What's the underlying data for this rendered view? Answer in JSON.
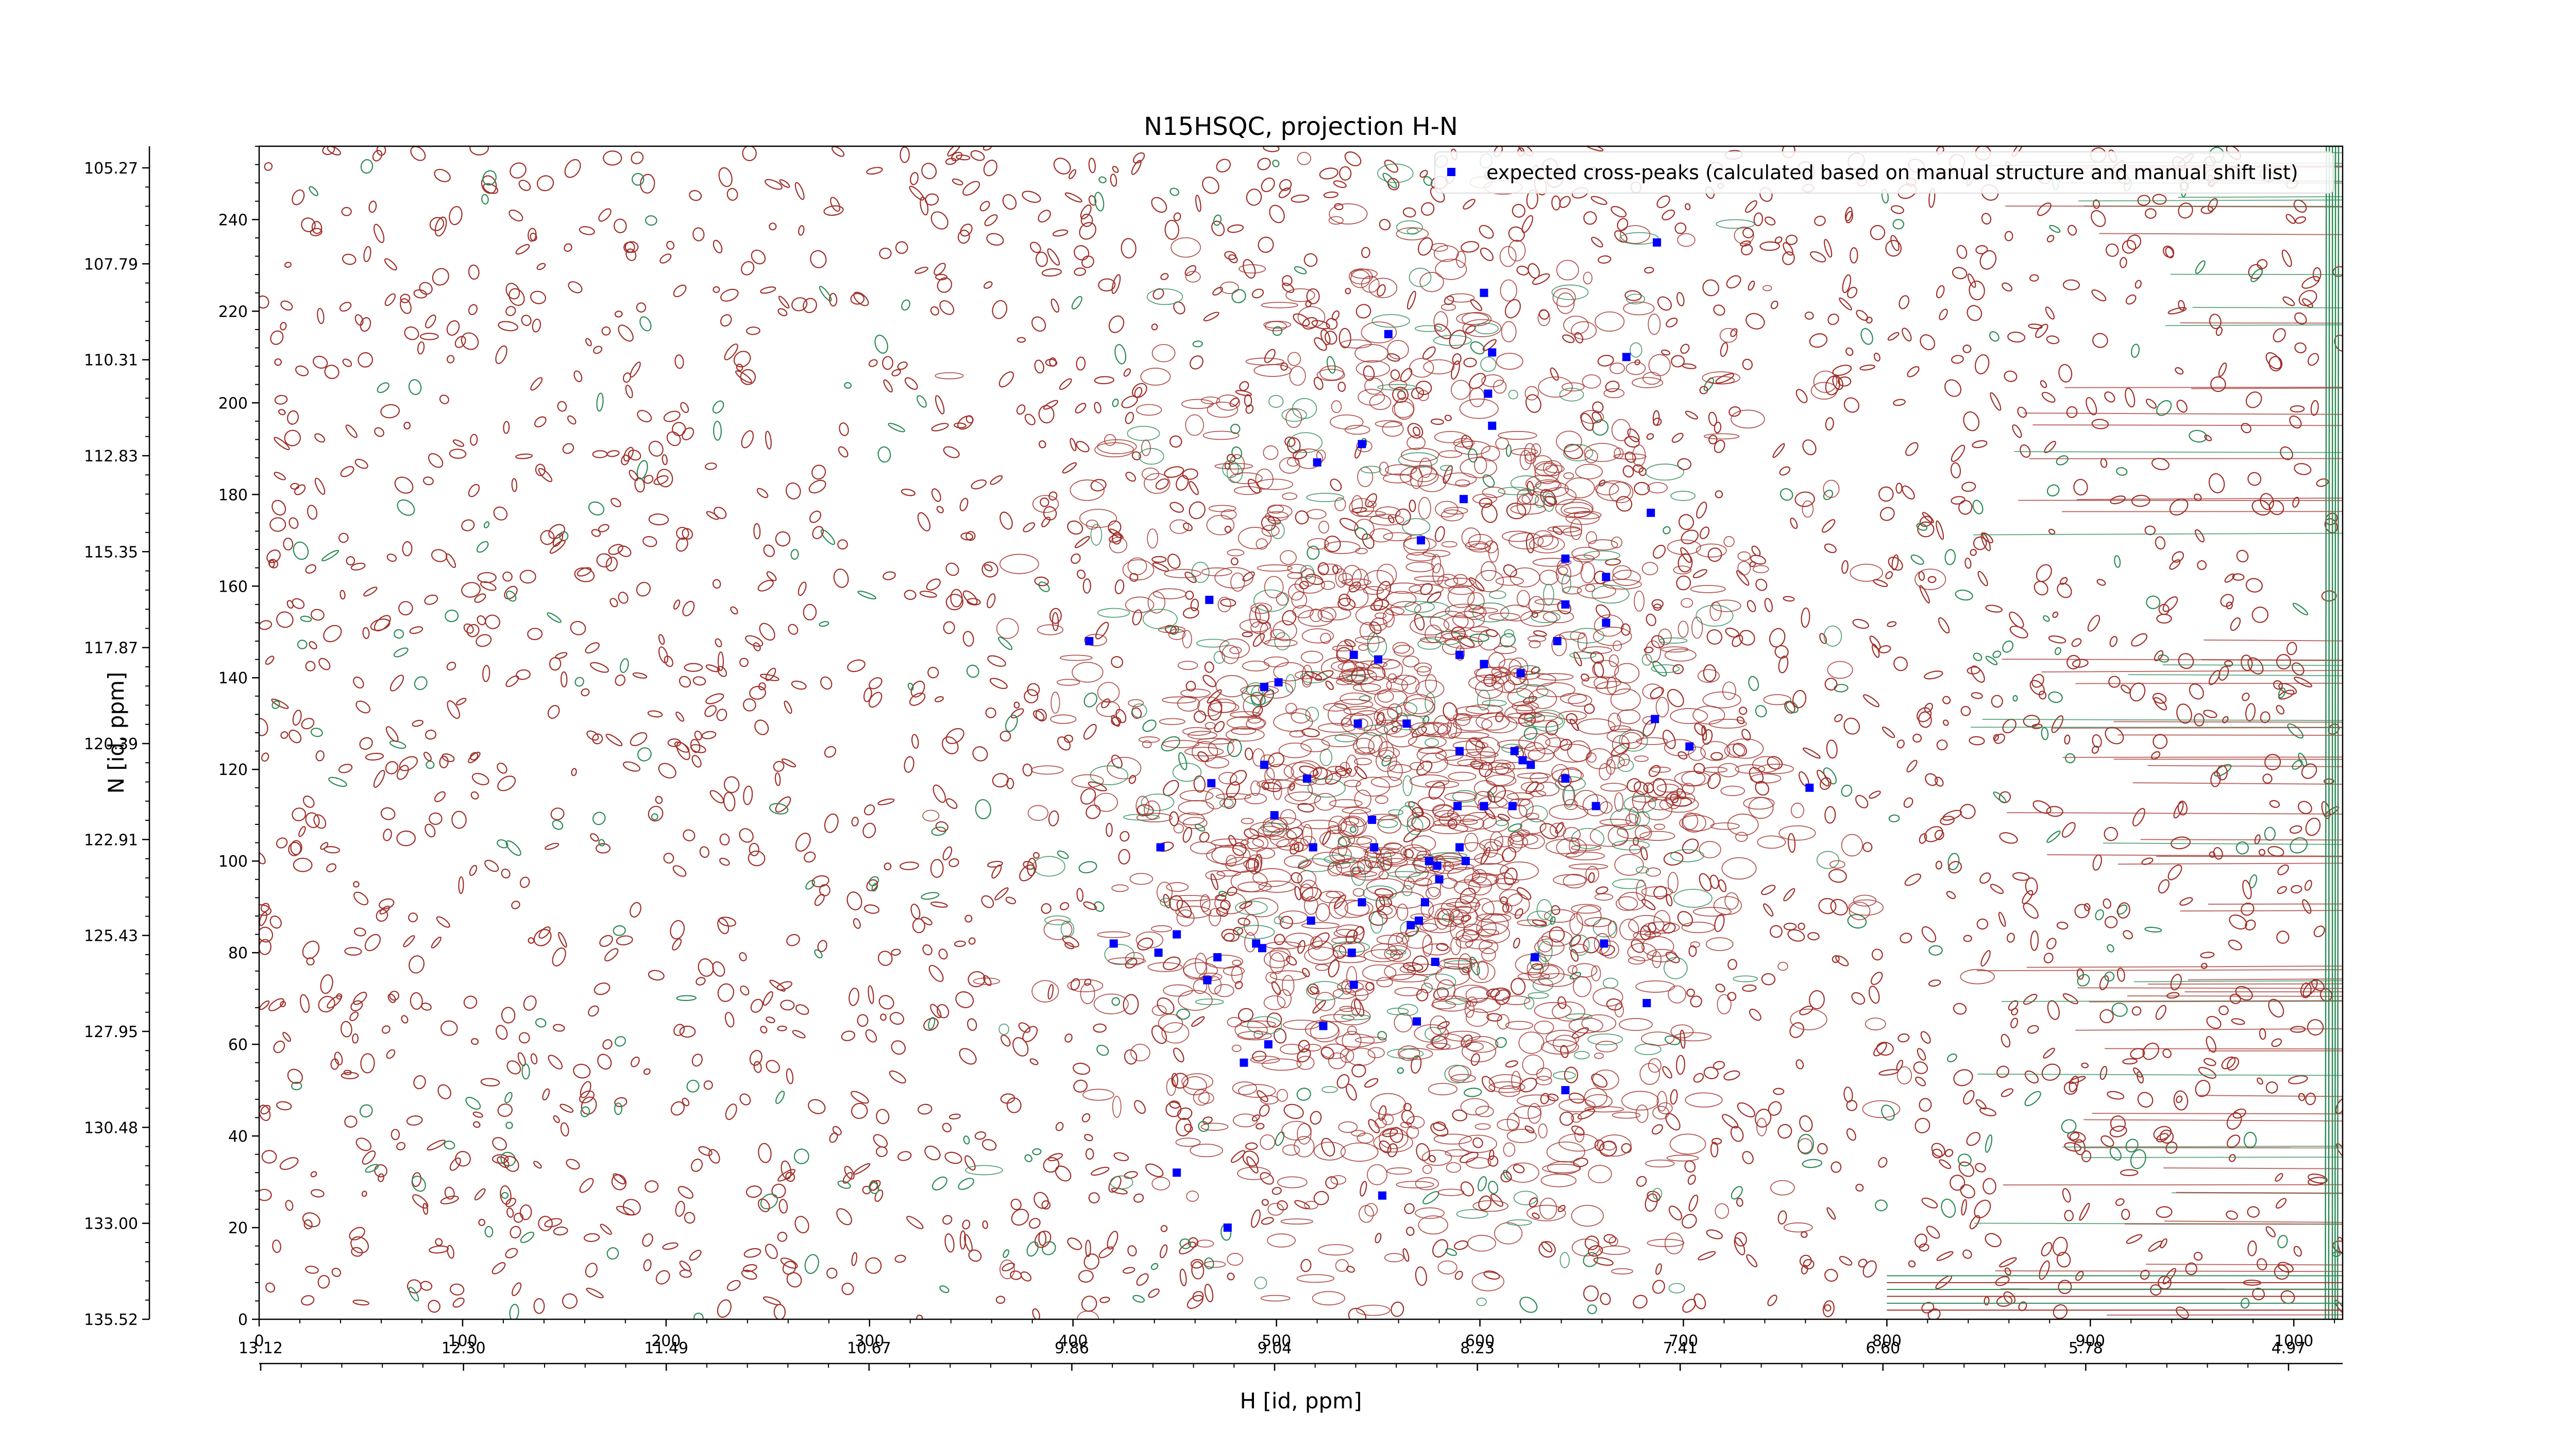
{
  "chart_data": {
    "type": "scatter",
    "title": "N15HSQC, projection H-N",
    "xlabel": "H [id, ppm]",
    "ylabel": "N [id, ppm]",
    "xlim": [
      0,
      1024
    ],
    "ylim": [
      0,
      256
    ],
    "x_ticks": [
      0,
      100,
      200,
      300,
      400,
      500,
      600,
      700,
      800,
      900,
      1000
    ],
    "y_ticks": [
      0,
      20,
      40,
      60,
      80,
      100,
      120,
      140,
      160,
      180,
      200,
      220,
      240
    ],
    "x_ppm_ticks": [
      "13.12",
      "12.30",
      "11.49",
      "10.67",
      "9.86",
      "9.04",
      "8.23",
      "7.41",
      "6.60",
      "5.78",
      "4.97"
    ],
    "y_ppm_ticks": [
      "135.52",
      "133.00",
      "130.48",
      "127.95",
      "125.43",
      "122.91",
      "120.39",
      "117.87",
      "115.35",
      "112.83",
      "110.31",
      "107.79",
      "105.27"
    ],
    "legend": {
      "label": "expected cross-peaks (calculated based on manual structure and manual shift list)",
      "position": "top-right",
      "color": "#0000ff"
    },
    "contour_colors": {
      "positive": "#a0302a",
      "negative": "#2e8b57"
    },
    "series": [
      {
        "name": "expected cross-peaks (calculated based on manual structure and manual shift list)",
        "color": "#0000ff",
        "points": [
          [
            687,
            235
          ],
          [
            602,
            224
          ],
          [
            555,
            215
          ],
          [
            606,
            211
          ],
          [
            672,
            210
          ],
          [
            604,
            202
          ],
          [
            606,
            195
          ],
          [
            542,
            191
          ],
          [
            520,
            187
          ],
          [
            592,
            179
          ],
          [
            684,
            176
          ],
          [
            571,
            170
          ],
          [
            642,
            166
          ],
          [
            662,
            162
          ],
          [
            467,
            157
          ],
          [
            642,
            156
          ],
          [
            662,
            152
          ],
          [
            638,
            148
          ],
          [
            408,
            148
          ],
          [
            538,
            145
          ],
          [
            550,
            144
          ],
          [
            590,
            145
          ],
          [
            602,
            143
          ],
          [
            620,
            141
          ],
          [
            494,
            138
          ],
          [
            501,
            139
          ],
          [
            540,
            130
          ],
          [
            564,
            130
          ],
          [
            686,
            131
          ],
          [
            703,
            125
          ],
          [
            590,
            124
          ],
          [
            617,
            124
          ],
          [
            621,
            122
          ],
          [
            625,
            121
          ],
          [
            494,
            121
          ],
          [
            468,
            117
          ],
          [
            515,
            118
          ],
          [
            642,
            118
          ],
          [
            762,
            116
          ],
          [
            589,
            112
          ],
          [
            602,
            112
          ],
          [
            616,
            112
          ],
          [
            657,
            112
          ],
          [
            499,
            110
          ],
          [
            547,
            109
          ],
          [
            443,
            103
          ],
          [
            518,
            103
          ],
          [
            548,
            103
          ],
          [
            590,
            103
          ],
          [
            575,
            100
          ],
          [
            579,
            99
          ],
          [
            593,
            100
          ],
          [
            580,
            96
          ],
          [
            542,
            91
          ],
          [
            573,
            91
          ],
          [
            570,
            87
          ],
          [
            517,
            87
          ],
          [
            566,
            86
          ],
          [
            420,
            82
          ],
          [
            451,
            84
          ],
          [
            490,
            82
          ],
          [
            493,
            81
          ],
          [
            442,
            80
          ],
          [
            471,
            79
          ],
          [
            537,
            80
          ],
          [
            578,
            78
          ],
          [
            627,
            79
          ],
          [
            661,
            82
          ],
          [
            466,
            74
          ],
          [
            538,
            73
          ],
          [
            682,
            69
          ],
          [
            569,
            65
          ],
          [
            523,
            64
          ],
          [
            496,
            60
          ],
          [
            484,
            56
          ],
          [
            642,
            50
          ],
          [
            451,
            32
          ],
          [
            552,
            27
          ],
          [
            476,
            20
          ]
        ]
      }
    ]
  }
}
